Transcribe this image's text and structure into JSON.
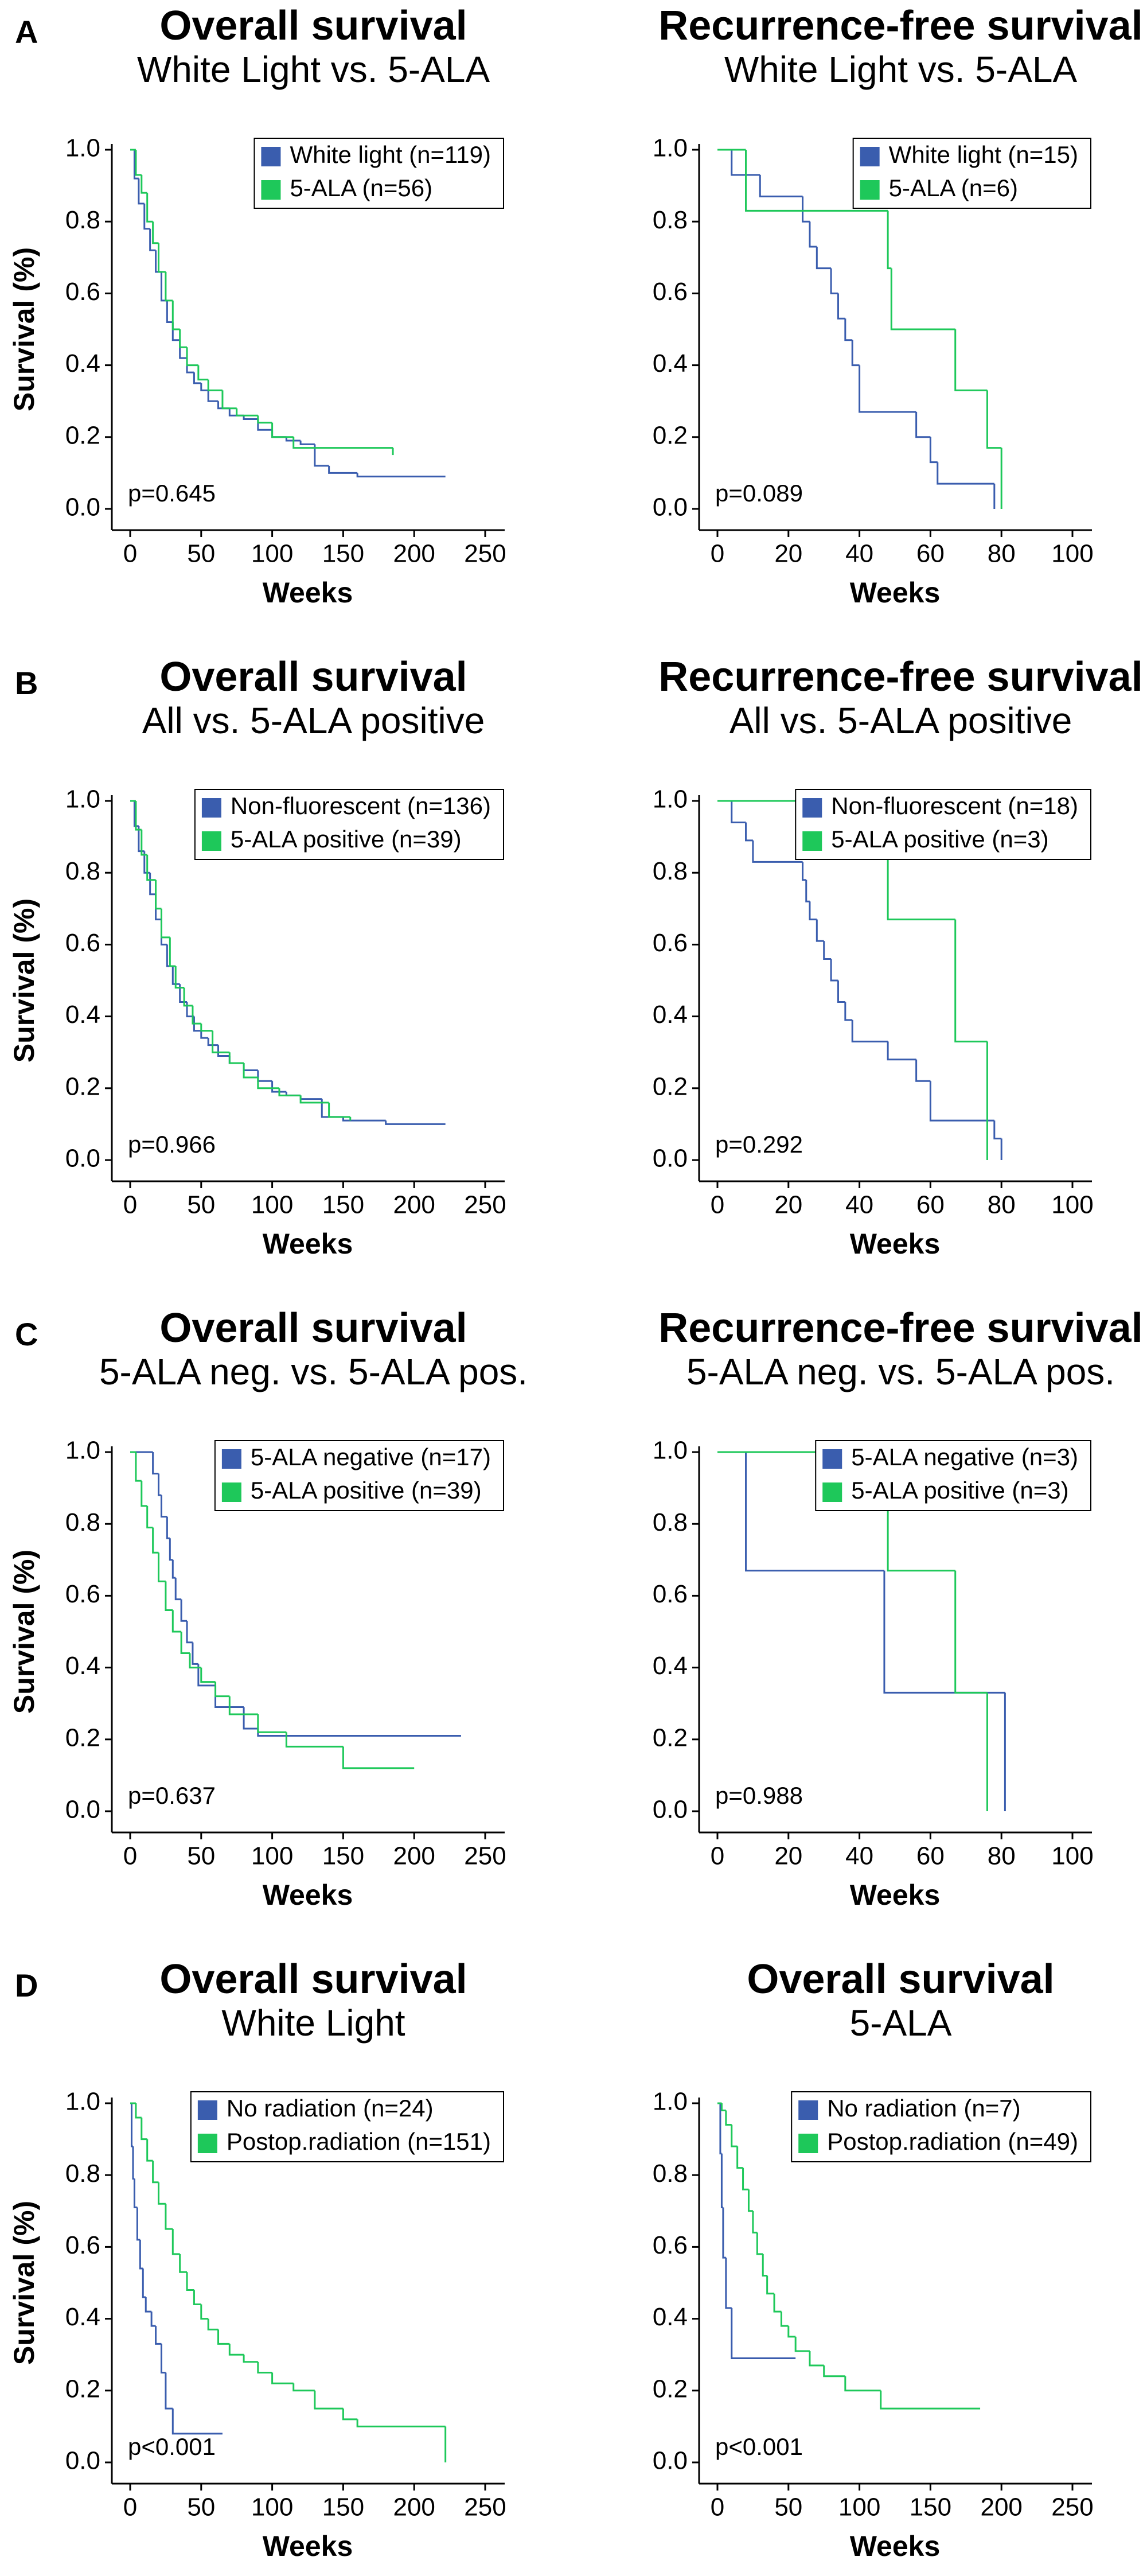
{
  "chart_data": [
    {
      "type": "line",
      "panel": "A",
      "title": "Overall survival",
      "subtitle": "White Light vs. 5-ALA",
      "xlabel": "Weeks",
      "ylabel": "Survival (%)",
      "annotation": "p=0.645",
      "xlim": [
        0,
        250
      ],
      "ylim": [
        0,
        1
      ],
      "xticks": [
        0,
        50,
        100,
        150,
        200,
        250
      ],
      "yticks": [
        {
          "value": 0,
          "label": "0.0"
        },
        0.2,
        0.4,
        0.6,
        0.8,
        {
          "value": 1,
          "label": "1.0"
        }
      ],
      "legend": "upper right",
      "series": [
        {
          "name": "White light (n=119)",
          "color": "#3a5dae",
          "x": [
            0,
            3,
            6,
            10,
            14,
            18,
            22,
            26,
            30,
            35,
            40,
            45,
            50,
            55,
            62,
            70,
            80,
            90,
            100,
            110,
            120,
            130,
            140,
            160,
            222
          ],
          "values": [
            1.0,
            0.92,
            0.85,
            0.78,
            0.72,
            0.66,
            0.58,
            0.52,
            0.47,
            0.42,
            0.38,
            0.35,
            0.33,
            0.3,
            0.28,
            0.26,
            0.25,
            0.22,
            0.2,
            0.19,
            0.18,
            0.12,
            0.1,
            0.09,
            0.09
          ]
        },
        {
          "name": "5-ALA (n=56)",
          "color": "#1ec85a",
          "x": [
            0,
            4,
            8,
            12,
            16,
            20,
            25,
            30,
            35,
            40,
            48,
            55,
            65,
            75,
            90,
            100,
            115,
            185
          ],
          "values": [
            1.0,
            0.93,
            0.88,
            0.8,
            0.74,
            0.66,
            0.58,
            0.5,
            0.45,
            0.4,
            0.36,
            0.33,
            0.28,
            0.26,
            0.24,
            0.2,
            0.17,
            0.15
          ]
        }
      ]
    },
    {
      "type": "line",
      "title": "Recurrence-free survival",
      "subtitle": "White Light vs. 5-ALA",
      "xlabel": "Weeks",
      "annotation": "p=0.089",
      "xlim": [
        0,
        100
      ],
      "ylim": [
        0,
        1
      ],
      "xticks": [
        0,
        20,
        40,
        60,
        80,
        100
      ],
      "yticks": [
        {
          "value": 0,
          "label": "0.0"
        },
        0.2,
        0.4,
        0.6,
        0.8,
        {
          "value": 1,
          "label": "1.0"
        }
      ],
      "legend": "upper right",
      "series": [
        {
          "name": "White light (n=15)",
          "color": "#3a5dae",
          "x": [
            0,
            4,
            12,
            24,
            26,
            28,
            32,
            34,
            36,
            38,
            40,
            56,
            60,
            62,
            78
          ],
          "values": [
            1.0,
            0.93,
            0.87,
            0.8,
            0.73,
            0.67,
            0.6,
            0.53,
            0.47,
            0.4,
            0.27,
            0.2,
            0.13,
            0.07,
            0.0
          ]
        },
        {
          "name": "5-ALA (n=6)",
          "color": "#1ec85a",
          "x": [
            0,
            8,
            48,
            49,
            67,
            76,
            80
          ],
          "values": [
            1.0,
            0.83,
            0.67,
            0.5,
            0.33,
            0.17,
            0.0
          ]
        }
      ]
    },
    {
      "type": "line",
      "panel": "B",
      "title": "Overall survival",
      "subtitle": "All vs. 5-ALA positive",
      "xlabel": "Weeks",
      "ylabel": "Survival (%)",
      "annotation": "p=0.966",
      "xlim": [
        0,
        250
      ],
      "ylim": [
        0,
        1
      ],
      "xticks": [
        0,
        50,
        100,
        150,
        200,
        250
      ],
      "yticks": [
        {
          "value": 0,
          "label": "0.0"
        },
        0.2,
        0.4,
        0.6,
        0.8,
        {
          "value": 1,
          "label": "1.0"
        }
      ],
      "legend": "upper right",
      "series": [
        {
          "name": "Non-fluorescent (n=136)",
          "color": "#3a5dae",
          "x": [
            0,
            3,
            6,
            10,
            14,
            18,
            22,
            26,
            30,
            35,
            40,
            45,
            50,
            55,
            62,
            70,
            80,
            90,
            100,
            110,
            120,
            135,
            150,
            180,
            222
          ],
          "values": [
            1.0,
            0.93,
            0.86,
            0.8,
            0.74,
            0.67,
            0.6,
            0.54,
            0.49,
            0.44,
            0.4,
            0.36,
            0.34,
            0.32,
            0.29,
            0.27,
            0.25,
            0.22,
            0.19,
            0.18,
            0.17,
            0.12,
            0.11,
            0.1,
            0.1
          ]
        },
        {
          "name": "5-ALA positive (n=39)",
          "color": "#1ec85a",
          "x": [
            0,
            4,
            8,
            12,
            18,
            22,
            28,
            32,
            38,
            44,
            50,
            58,
            70,
            80,
            90,
            105,
            120,
            140,
            155
          ],
          "values": [
            1.0,
            0.92,
            0.85,
            0.78,
            0.7,
            0.62,
            0.54,
            0.48,
            0.43,
            0.38,
            0.36,
            0.3,
            0.27,
            0.23,
            0.2,
            0.18,
            0.16,
            0.12,
            0.11
          ]
        }
      ]
    },
    {
      "type": "line",
      "title": "Recurrence-free survival",
      "subtitle": "All vs. 5-ALA positive",
      "xlabel": "Weeks",
      "annotation": "p=0.292",
      "xlim": [
        0,
        100
      ],
      "ylim": [
        0,
        1
      ],
      "xticks": [
        0,
        20,
        40,
        60,
        80,
        100
      ],
      "yticks": [
        {
          "value": 0,
          "label": "0.0"
        },
        0.2,
        0.4,
        0.6,
        0.8,
        {
          "value": 1,
          "label": "1.0"
        }
      ],
      "legend": "upper right",
      "series": [
        {
          "name": "Non-fluorescent (n=18)",
          "color": "#3a5dae",
          "x": [
            0,
            4,
            8,
            10,
            24,
            25,
            26,
            28,
            30,
            32,
            34,
            36,
            38,
            48,
            56,
            60,
            78,
            80
          ],
          "values": [
            1.0,
            0.94,
            0.89,
            0.83,
            0.78,
            0.72,
            0.67,
            0.61,
            0.56,
            0.5,
            0.44,
            0.39,
            0.33,
            0.28,
            0.22,
            0.11,
            0.06,
            0.0
          ]
        },
        {
          "name": "5-ALA positive (n=3)",
          "color": "#1ec85a",
          "x": [
            0,
            48,
            67,
            76
          ],
          "values": [
            1.0,
            0.67,
            0.33,
            0.0
          ]
        }
      ]
    },
    {
      "type": "line",
      "panel": "C",
      "title": "Overall survival",
      "subtitle": "5-ALA neg. vs. 5-ALA pos.",
      "xlabel": "Weeks",
      "ylabel": "Survival (%)",
      "annotation": "p=0.637",
      "xlim": [
        0,
        250
      ],
      "ylim": [
        0,
        1
      ],
      "xticks": [
        0,
        50,
        100,
        150,
        200,
        250
      ],
      "yticks": [
        {
          "value": 0,
          "label": "0.0"
        },
        0.2,
        0.4,
        0.6,
        0.8,
        {
          "value": 1,
          "label": "1.0"
        }
      ],
      "legend": "upper right",
      "series": [
        {
          "name": "5-ALA negative (n=17)",
          "color": "#3a5dae",
          "x": [
            0,
            16,
            20,
            22,
            26,
            28,
            30,
            32,
            36,
            40,
            44,
            48,
            60,
            80,
            90,
            233
          ],
          "values": [
            1.0,
            0.94,
            0.88,
            0.82,
            0.76,
            0.7,
            0.65,
            0.59,
            0.53,
            0.47,
            0.41,
            0.35,
            0.29,
            0.23,
            0.21,
            0.21
          ]
        },
        {
          "name": "5-ALA positive (n=39)",
          "color": "#1ec85a",
          "x": [
            0,
            4,
            8,
            12,
            16,
            20,
            25,
            30,
            36,
            42,
            50,
            60,
            70,
            90,
            110,
            150,
            200
          ],
          "values": [
            1.0,
            0.92,
            0.85,
            0.79,
            0.72,
            0.64,
            0.56,
            0.5,
            0.44,
            0.4,
            0.36,
            0.32,
            0.27,
            0.22,
            0.18,
            0.12,
            0.12
          ]
        }
      ]
    },
    {
      "type": "line",
      "title": "Recurrence-free survival",
      "subtitle": "5-ALA neg. vs. 5-ALA pos.",
      "xlabel": "Weeks",
      "annotation": "p=0.988",
      "xlim": [
        0,
        100
      ],
      "ylim": [
        0,
        1
      ],
      "xticks": [
        0,
        20,
        40,
        60,
        80,
        100
      ],
      "yticks": [
        {
          "value": 0,
          "label": "0.0"
        },
        0.2,
        0.4,
        0.6,
        0.8,
        {
          "value": 1,
          "label": "1.0"
        }
      ],
      "legend": "upper right",
      "series": [
        {
          "name": "5-ALA negative (n=3)",
          "color": "#3a5dae",
          "x": [
            0,
            8,
            47,
            81
          ],
          "values": [
            1.0,
            0.67,
            0.33,
            0.0
          ]
        },
        {
          "name": "5-ALA positive (n=3)",
          "color": "#1ec85a",
          "x": [
            0,
            48,
            67,
            76
          ],
          "values": [
            1.0,
            0.67,
            0.33,
            0.0
          ]
        }
      ]
    },
    {
      "type": "line",
      "panel": "D",
      "title": "Overall survival",
      "subtitle": "White Light",
      "xlabel": "Weeks",
      "ylabel": "Survival (%)",
      "annotation": "p<0.001",
      "xlim": [
        0,
        250
      ],
      "ylim": [
        0,
        1
      ],
      "xticks": [
        0,
        50,
        100,
        150,
        200,
        250
      ],
      "yticks": [
        {
          "value": 0,
          "label": "0.0"
        },
        0.2,
        0.4,
        0.6,
        0.8,
        {
          "value": 1,
          "label": "1.0"
        }
      ],
      "legend": "upper right",
      "series": [
        {
          "name": "No radiation (n=24)",
          "color": "#3a5dae",
          "x": [
            0,
            1,
            2,
            3,
            5,
            7,
            9,
            11,
            15,
            18,
            22,
            25,
            30,
            65
          ],
          "values": [
            1.0,
            0.88,
            0.79,
            0.71,
            0.62,
            0.54,
            0.46,
            0.42,
            0.38,
            0.33,
            0.25,
            0.15,
            0.08,
            0.08
          ]
        },
        {
          "name": "Postop.radiation (n=151)",
          "color": "#1ec85a",
          "x": [
            0,
            4,
            8,
            12,
            16,
            20,
            25,
            30,
            35,
            40,
            45,
            50,
            55,
            62,
            70,
            80,
            90,
            100,
            115,
            130,
            150,
            160,
            222
          ],
          "values": [
            1.0,
            0.96,
            0.9,
            0.84,
            0.78,
            0.72,
            0.65,
            0.58,
            0.53,
            0.48,
            0.44,
            0.4,
            0.37,
            0.33,
            0.3,
            0.28,
            0.25,
            0.22,
            0.2,
            0.15,
            0.12,
            0.1,
            0.0
          ]
        }
      ]
    },
    {
      "type": "line",
      "title": "Overall survival",
      "subtitle": "5-ALA",
      "xlabel": "Weeks",
      "annotation": "p<0.001",
      "xlim": [
        0,
        250
      ],
      "ylim": [
        0,
        1
      ],
      "xticks": [
        0,
        50,
        100,
        150,
        200,
        250
      ],
      "yticks": [
        {
          "value": 0,
          "label": "0.0"
        },
        0.2,
        0.4,
        0.6,
        0.8,
        {
          "value": 1,
          "label": "1.0"
        }
      ],
      "legend": "upper right",
      "series": [
        {
          "name": "No radiation (n=7)",
          "color": "#3a5dae",
          "x": [
            0,
            2,
            3,
            4,
            6,
            10,
            55
          ],
          "values": [
            1.0,
            0.86,
            0.71,
            0.57,
            0.43,
            0.29,
            0.29
          ]
        },
        {
          "name": "Postop.radiation (n=49)",
          "color": "#1ec85a",
          "x": [
            0,
            3,
            6,
            10,
            14,
            18,
            22,
            25,
            28,
            32,
            35,
            40,
            45,
            50,
            55,
            65,
            75,
            90,
            115,
            185
          ],
          "values": [
            1.0,
            0.98,
            0.94,
            0.88,
            0.82,
            0.76,
            0.7,
            0.64,
            0.58,
            0.52,
            0.47,
            0.42,
            0.38,
            0.35,
            0.31,
            0.27,
            0.24,
            0.2,
            0.15,
            0.15
          ]
        }
      ]
    }
  ]
}
